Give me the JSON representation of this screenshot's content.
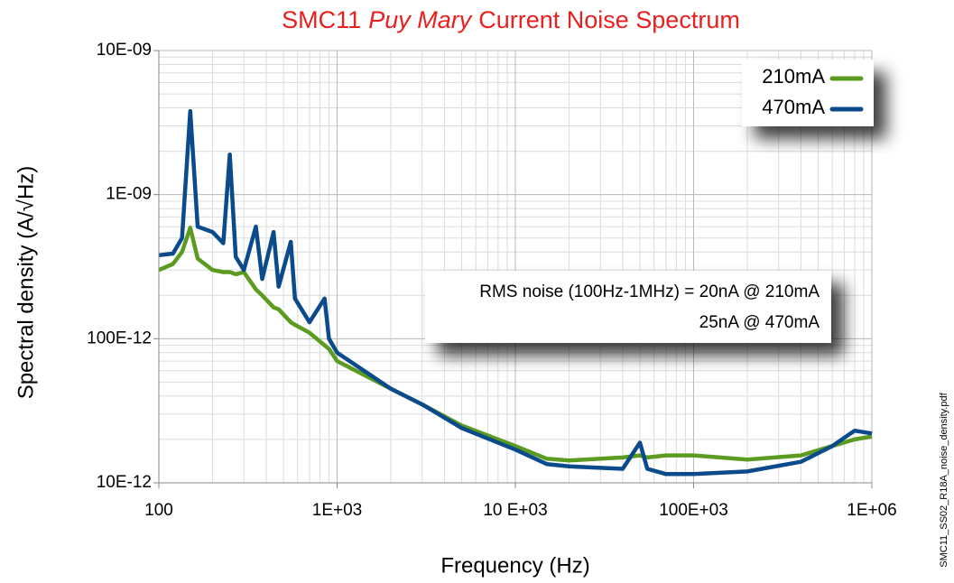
{
  "chart_data": {
    "type": "line",
    "title": [
      "SMC11",
      "Puy Mary",
      "Current Noise Spectrum"
    ],
    "x_label": "Frequency (Hz)",
    "y_label": "Spectral density (A/√Hz)",
    "side_label": "SMC11_SS02_R18A_noise_density.pdf",
    "annotations": [
      "RMS noise (100Hz-1MHz) = 20nA @ 210mA",
      "25nA @ 470mA"
    ],
    "x_log": true,
    "y_log": true,
    "grid": true,
    "minor_grid": true,
    "legend": "upper right",
    "xlim": [
      100,
      1000000
    ],
    "ylim": [
      1e-11,
      1e-08
    ],
    "xticks": [
      100,
      {
        "value": 1000,
        "label": "1E+03"
      },
      {
        "value": 10000,
        "label": "10 E+03"
      },
      {
        "value": 100000,
        "label": "100E+03"
      },
      {
        "value": 1000000,
        "label": "1E+06"
      }
    ],
    "yticks": [
      {
        "value": 1e-11,
        "label": "10E-12"
      },
      {
        "value": 1e-10,
        "label": "100E-12"
      },
      {
        "value": 1e-09,
        "label": "1E-09"
      },
      {
        "value": 1e-08,
        "label": "10E-09"
      }
    ],
    "x": [
      100,
      120,
      135,
      150,
      165,
      200,
      230,
      250,
      270,
      300,
      350,
      380,
      440,
      470,
      550,
      580,
      700,
      850,
      900,
      1000,
      2000,
      3000,
      5000,
      10000,
      15000,
      20000,
      40000,
      50000,
      55000,
      70000,
      100000,
      200000,
      400000,
      600000,
      800000,
      1000000
    ],
    "series": [
      {
        "name": "210mA",
        "color": "#5b9b1f",
        "values": [
          3e-10,
          3.3e-10,
          4e-10,
          5.9e-10,
          3.6e-10,
          3e-10,
          2.9e-10,
          2.9e-10,
          2.8e-10,
          2.9e-10,
          2.2e-10,
          2e-10,
          1.65e-10,
          1.6e-10,
          1.3e-10,
          1.25e-10,
          1.1e-10,
          9e-11,
          8.5e-11,
          7e-11,
          4.5e-11,
          3.5e-11,
          2.5e-11,
          1.8e-11,
          1.47e-11,
          1.43e-11,
          1.5e-11,
          1.55e-11,
          1.5e-11,
          1.55e-11,
          1.55e-11,
          1.45e-11,
          1.55e-11,
          1.8e-11,
          2e-11,
          2.1e-11
        ]
      },
      {
        "name": "470mA",
        "color": "#0b4a8b",
        "values": [
          3.8e-10,
          3.9e-10,
          5e-10,
          3.8e-09,
          6e-10,
          5.5e-10,
          4.6e-10,
          1.9e-09,
          3.7e-10,
          3e-10,
          6e-10,
          2.6e-10,
          5.5e-10,
          2.3e-10,
          4.7e-10,
          1.9e-10,
          1.3e-10,
          1.9e-10,
          1e-10,
          8e-11,
          4.5e-11,
          3.5e-11,
          2.4e-11,
          1.7e-11,
          1.35e-11,
          1.3e-11,
          1.25e-11,
          1.9e-11,
          1.25e-11,
          1.15e-11,
          1.15e-11,
          1.2e-11,
          1.4e-11,
          1.8e-11,
          2.3e-11,
          2.2e-11
        ]
      }
    ]
  }
}
